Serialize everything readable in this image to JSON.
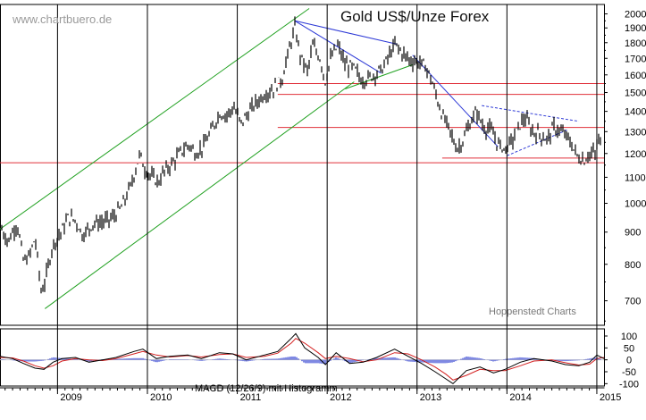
{
  "chart_data": [
    {
      "type": "candlestick",
      "title": "Gold US$/Unze Forex",
      "watermark": "www.chartbuero.de",
      "credit": "Hoppenstedt Charts",
      "y_scale": "log",
      "ylim": [
        640,
        2050
      ],
      "xlim": [
        2008.36,
        2015.08
      ],
      "y_ticks": [
        2000,
        1900,
        1800,
        1700,
        1600,
        1500,
        1400,
        1300,
        1200,
        1100,
        1000,
        900,
        800,
        700
      ],
      "x_ticks": [
        "2009",
        "2010",
        "2011",
        "2012",
        "2013",
        "2014",
        "2015"
      ],
      "grid": false,
      "price_path": [
        [
          2008.36,
          920
        ],
        [
          2008.45,
          870
        ],
        [
          2008.55,
          930
        ],
        [
          2008.62,
          810
        ],
        [
          2008.68,
          820
        ],
        [
          2008.75,
          880
        ],
        [
          2008.82,
          720
        ],
        [
          2008.86,
          750
        ],
        [
          2008.95,
          860
        ],
        [
          2009.04,
          900
        ],
        [
          2009.12,
          950
        ],
        [
          2009.2,
          940
        ],
        [
          2009.28,
          890
        ],
        [
          2009.4,
          930
        ],
        [
          2009.52,
          935
        ],
        [
          2009.62,
          950
        ],
        [
          2009.72,
          990
        ],
        [
          2009.82,
          1070
        ],
        [
          2009.92,
          1200
        ],
        [
          2009.96,
          1140
        ],
        [
          2010.05,
          1100
        ],
        [
          2010.12,
          1080
        ],
        [
          2010.18,
          1120
        ],
        [
          2010.28,
          1160
        ],
        [
          2010.38,
          1210
        ],
        [
          2010.46,
          1240
        ],
        [
          2010.54,
          1200
        ],
        [
          2010.62,
          1230
        ],
        [
          2010.72,
          1310
        ],
        [
          2010.8,
          1390
        ],
        [
          2010.88,
          1380
        ],
        [
          2010.96,
          1420
        ],
        [
          2011.04,
          1340
        ],
        [
          2011.12,
          1390
        ],
        [
          2011.2,
          1440
        ],
        [
          2011.3,
          1490
        ],
        [
          2011.4,
          1520
        ],
        [
          2011.5,
          1580
        ],
        [
          2011.58,
          1760
        ],
        [
          2011.64,
          1900
        ],
        [
          2011.7,
          1720
        ],
        [
          2011.78,
          1620
        ],
        [
          2011.84,
          1780
        ],
        [
          2011.92,
          1700
        ],
        [
          2011.98,
          1560
        ],
        [
          2012.04,
          1700
        ],
        [
          2012.12,
          1780
        ],
        [
          2012.2,
          1660
        ],
        [
          2012.3,
          1640
        ],
        [
          2012.38,
          1570
        ],
        [
          2012.46,
          1580
        ],
        [
          2012.54,
          1610
        ],
        [
          2012.62,
          1640
        ],
        [
          2012.7,
          1730
        ],
        [
          2012.76,
          1790
        ],
        [
          2012.84,
          1730
        ],
        [
          2012.92,
          1690
        ],
        [
          2013.0,
          1680
        ],
        [
          2013.08,
          1660
        ],
        [
          2013.14,
          1600
        ],
        [
          2013.22,
          1470
        ],
        [
          2013.28,
          1380
        ],
        [
          2013.36,
          1310
        ],
        [
          2013.44,
          1220
        ],
        [
          2013.5,
          1250
        ],
        [
          2013.58,
          1330
        ],
        [
          2013.66,
          1400
        ],
        [
          2013.74,
          1320
        ],
        [
          2013.82,
          1310
        ],
        [
          2013.9,
          1240
        ],
        [
          2013.98,
          1220
        ],
        [
          2014.06,
          1260
        ],
        [
          2014.14,
          1330
        ],
        [
          2014.2,
          1370
        ],
        [
          2014.28,
          1300
        ],
        [
          2014.36,
          1290
        ],
        [
          2014.44,
          1260
        ],
        [
          2014.52,
          1320
        ],
        [
          2014.6,
          1300
        ],
        [
          2014.68,
          1270
        ],
        [
          2014.74,
          1220
        ],
        [
          2014.8,
          1180
        ],
        [
          2014.86,
          1170
        ],
        [
          2014.92,
          1200
        ],
        [
          2014.98,
          1200
        ],
        [
          2015.02,
          1260
        ],
        [
          2015.06,
          1230
        ],
        [
          2015.08,
          1200
        ]
      ],
      "horizontal_lines": [
        1550,
        1490,
        1320,
        1180,
        1160
      ],
      "channel_upper": [
        [
          2008.36,
          910
        ],
        [
          2011.8,
          2040
        ]
      ],
      "channel_lower": [
        [
          2008.86,
          680
        ],
        [
          2012.3,
          1560
        ]
      ],
      "trend_lines": [
        [
          [
            2011.64,
            1950
          ],
          [
            2012.78,
            1790
          ]
        ],
        [
          [
            2011.64,
            1950
          ],
          [
            2012.6,
            1610
          ]
        ],
        [
          [
            2012.2,
            1520
          ],
          [
            2012.95,
            1660
          ]
        ],
        [
          [
            2012.95,
            1720
          ],
          [
            2013.9,
            1230
          ]
        ]
      ],
      "triangle_lines": [
        [
          [
            2014.0,
            1190
          ],
          [
            2014.68,
            1310
          ]
        ],
        [
          [
            2013.72,
            1430
          ],
          [
            2014.8,
            1350
          ]
        ]
      ]
    },
    {
      "type": "macd",
      "label": "MACD (12/26/9) mit Histogramm",
      "ylim": [
        -110,
        130
      ],
      "y_ticks": [
        100,
        50,
        0,
        -50,
        -100
      ],
      "macd": [
        [
          2008.36,
          15
        ],
        [
          2008.5,
          5
        ],
        [
          2008.62,
          -15
        ],
        [
          2008.75,
          -35
        ],
        [
          2008.85,
          -40
        ],
        [
          2008.95,
          -10
        ],
        [
          2009.05,
          5
        ],
        [
          2009.2,
          10
        ],
        [
          2009.35,
          -10
        ],
        [
          2009.5,
          0
        ],
        [
          2009.65,
          10
        ],
        [
          2009.85,
          35
        ],
        [
          2009.95,
          45
        ],
        [
          2010.1,
          5
        ],
        [
          2010.25,
          15
        ],
        [
          2010.45,
          20
        ],
        [
          2010.6,
          5
        ],
        [
          2010.8,
          30
        ],
        [
          2010.95,
          25
        ],
        [
          2011.1,
          0
        ],
        [
          2011.3,
          20
        ],
        [
          2011.45,
          35
        ],
        [
          2011.6,
          90
        ],
        [
          2011.65,
          110
        ],
        [
          2011.75,
          50
        ],
        [
          2011.9,
          10
        ],
        [
          2011.98,
          -20
        ],
        [
          2012.1,
          30
        ],
        [
          2012.25,
          -15
        ],
        [
          2012.4,
          -10
        ],
        [
          2012.55,
          10
        ],
        [
          2012.75,
          45
        ],
        [
          2012.9,
          15
        ],
        [
          2013.05,
          -15
        ],
        [
          2013.2,
          -50
        ],
        [
          2013.32,
          -80
        ],
        [
          2013.4,
          -100
        ],
        [
          2013.55,
          -45
        ],
        [
          2013.7,
          -30
        ],
        [
          2013.85,
          -55
        ],
        [
          2013.98,
          -40
        ],
        [
          2014.15,
          -10
        ],
        [
          2014.3,
          5
        ],
        [
          2014.5,
          -5
        ],
        [
          2014.65,
          -20
        ],
        [
          2014.8,
          -25
        ],
        [
          2014.92,
          -10
        ],
        [
          2015.0,
          20
        ],
        [
          2015.08,
          5
        ]
      ],
      "signal": [
        [
          2008.36,
          10
        ],
        [
          2008.5,
          8
        ],
        [
          2008.62,
          -5
        ],
        [
          2008.75,
          -25
        ],
        [
          2008.85,
          -35
        ],
        [
          2008.95,
          -25
        ],
        [
          2009.05,
          -5
        ],
        [
          2009.2,
          5
        ],
        [
          2009.35,
          0
        ],
        [
          2009.5,
          -3
        ],
        [
          2009.65,
          5
        ],
        [
          2009.85,
          25
        ],
        [
          2009.95,
          35
        ],
        [
          2010.1,
          20
        ],
        [
          2010.25,
          12
        ],
        [
          2010.45,
          18
        ],
        [
          2010.6,
          12
        ],
        [
          2010.8,
          22
        ],
        [
          2010.95,
          25
        ],
        [
          2011.1,
          10
        ],
        [
          2011.3,
          15
        ],
        [
          2011.45,
          28
        ],
        [
          2011.6,
          70
        ],
        [
          2011.65,
          90
        ],
        [
          2011.75,
          70
        ],
        [
          2011.9,
          30
        ],
        [
          2011.98,
          5
        ],
        [
          2012.1,
          15
        ],
        [
          2012.25,
          5
        ],
        [
          2012.4,
          -8
        ],
        [
          2012.55,
          0
        ],
        [
          2012.75,
          30
        ],
        [
          2012.9,
          25
        ],
        [
          2013.05,
          0
        ],
        [
          2013.2,
          -30
        ],
        [
          2013.32,
          -60
        ],
        [
          2013.4,
          -85
        ],
        [
          2013.55,
          -65
        ],
        [
          2013.7,
          -40
        ],
        [
          2013.85,
          -45
        ],
        [
          2013.98,
          -45
        ],
        [
          2014.15,
          -25
        ],
        [
          2014.3,
          -5
        ],
        [
          2014.5,
          0
        ],
        [
          2014.65,
          -12
        ],
        [
          2014.8,
          -22
        ],
        [
          2014.92,
          -18
        ],
        [
          2015.0,
          5
        ],
        [
          2015.08,
          10
        ]
      ]
    }
  ]
}
